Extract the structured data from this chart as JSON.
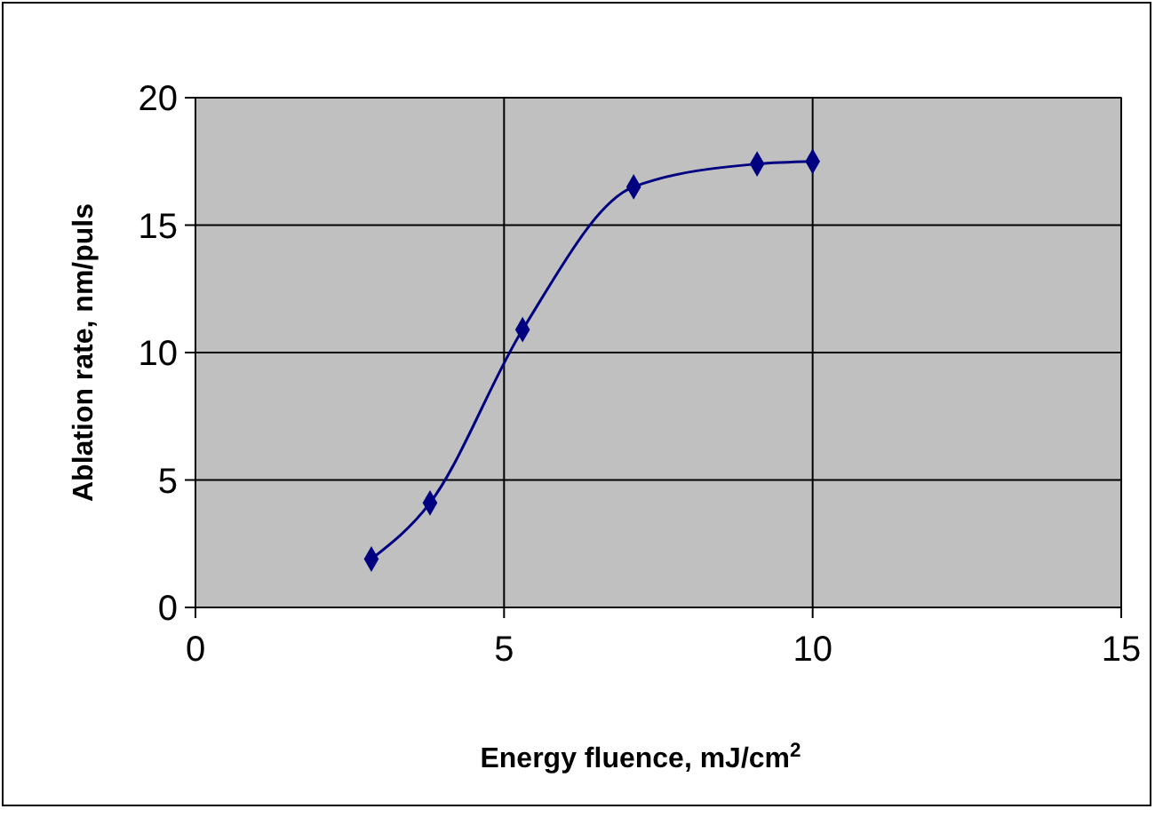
{
  "chart_data": {
    "type": "line",
    "xlabel": "Energy fluence, mJ/cm$^{2}$",
    "ylabel": "Ablation rate, nm/puls",
    "x": [
      2.85,
      3.8,
      5.3,
      7.1,
      9.1,
      10
    ],
    "series": [
      {
        "color": "#000080",
        "values": [
          1.9,
          4.1,
          10.9,
          16.5,
          17.4,
          17.5
        ]
      }
    ],
    "xlim": [
      0,
      15
    ],
    "xticks": [
      0,
      5,
      10,
      15
    ],
    "ylim": [
      0,
      20
    ],
    "yticks": [
      0,
      5,
      10,
      15,
      20
    ],
    "grid": true,
    "marker": "diamond",
    "line_style": "solid"
  }
}
